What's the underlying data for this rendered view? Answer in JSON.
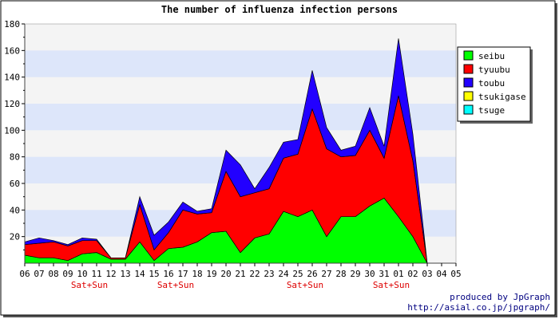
{
  "chart_data": {
    "type": "area",
    "stacked": true,
    "title": "The number of influenza infection persons",
    "ylim": [
      0,
      180
    ],
    "yticks": [
      20,
      40,
      60,
      80,
      100,
      120,
      140,
      160,
      180
    ],
    "categories": [
      "06",
      "07",
      "08",
      "09",
      "10",
      "11",
      "12",
      "13",
      "14",
      "15",
      "16",
      "17",
      "18",
      "19",
      "20",
      "21",
      "22",
      "23",
      "24",
      "25",
      "26",
      "27",
      "28",
      "29",
      "30",
      "31",
      "01",
      "02",
      "03",
      "04",
      "05"
    ],
    "series": [
      {
        "name": "seibu",
        "color": "#00ff00",
        "values": [
          6,
          4,
          4,
          2,
          7,
          8,
          3,
          3,
          16,
          2,
          11,
          12,
          16,
          23,
          24,
          8,
          19,
          22,
          39,
          35,
          40,
          20,
          35,
          35,
          43,
          49,
          35,
          20,
          0,
          0,
          0
        ]
      },
      {
        "name": "tyuubu",
        "color": "#ff0000",
        "values": [
          8,
          11,
          12,
          11,
          10,
          9,
          1,
          1,
          28,
          8,
          12,
          28,
          21,
          15,
          45,
          42,
          34,
          34,
          40,
          47,
          76,
          66,
          45,
          46,
          57,
          30,
          91,
          57,
          0,
          0,
          0
        ]
      },
      {
        "name": "toubu",
        "color": "#2200ff",
        "values": [
          2,
          4,
          1,
          1,
          2,
          1,
          0,
          0,
          6,
          11,
          8,
          6,
          2,
          3,
          16,
          24,
          3,
          16,
          12,
          11,
          29,
          16,
          5,
          7,
          17,
          9,
          43,
          20,
          0,
          0,
          0
        ]
      },
      {
        "name": "tsukigase",
        "color": "#ffff00",
        "values": [
          0,
          0,
          0,
          0,
          0,
          0,
          0,
          0,
          0,
          0,
          0,
          0,
          0,
          0,
          0,
          0,
          0,
          0,
          0,
          0,
          0,
          0,
          0,
          0,
          0,
          0,
          0,
          0,
          0,
          0,
          0
        ]
      },
      {
        "name": "tsuge",
        "color": "#00ffff",
        "values": [
          0,
          0,
          0,
          0,
          0,
          0,
          0,
          0,
          0,
          0,
          0,
          0,
          0,
          0,
          0,
          0,
          0,
          0,
          0,
          0,
          0,
          0,
          0,
          0,
          0,
          0,
          0,
          0,
          0,
          0,
          0
        ]
      }
    ],
    "weekend_markers": [
      {
        "after_category": "10",
        "label": "Sat+Sun"
      },
      {
        "after_category": "16",
        "label": "Sat+Sun"
      },
      {
        "after_category": "25",
        "label": "Sat+Sun"
      },
      {
        "after_category": "31",
        "label": "Sat+Sun"
      }
    ],
    "grid": true,
    "legend_position": "right"
  },
  "footer": {
    "line1": "produced by JpGraph",
    "line2": "http://asial.co.jp/jpgraph/"
  }
}
